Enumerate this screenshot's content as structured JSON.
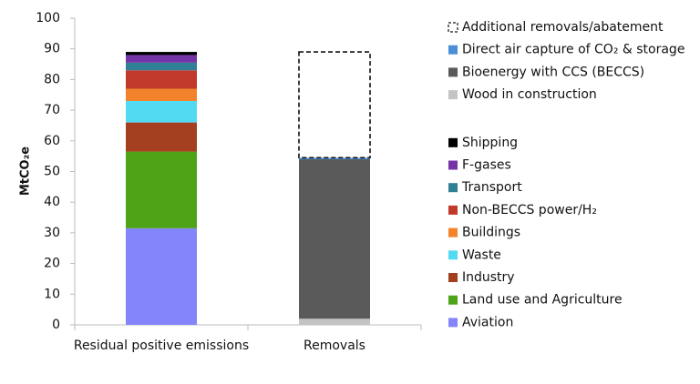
{
  "chart_data": {
    "type": "stacked-bar",
    "ylabel": "MtCO₂e",
    "categories": [
      "Residual positive emissions",
      "Removals"
    ],
    "ylim": [
      0,
      100
    ],
    "yticks": [
      0,
      10,
      20,
      30,
      40,
      50,
      60,
      70,
      80,
      90,
      100
    ],
    "series": [
      {
        "name": "Aviation",
        "color": "#8585fb",
        "values": [
          31.5,
          null
        ]
      },
      {
        "name": "Land use and Agriculture",
        "color": "#4ea416",
        "values": [
          25,
          null
        ]
      },
      {
        "name": "Industry",
        "color": "#a4401f",
        "values": [
          9.5,
          null
        ]
      },
      {
        "name": "Waste",
        "color": "#52daf2",
        "values": [
          7,
          null
        ]
      },
      {
        "name": "Buildings",
        "color": "#f3832b",
        "values": [
          4,
          null
        ]
      },
      {
        "name": "Non-BECCS power/H₂",
        "color": "#c0392b",
        "values": [
          6,
          null
        ]
      },
      {
        "name": "Transport",
        "color": "#2f7f95",
        "values": [
          2.5,
          null
        ]
      },
      {
        "name": "F-gases",
        "color": "#7434a6",
        "values": [
          2.5,
          null
        ]
      },
      {
        "name": "Shipping",
        "color": "#000000",
        "values": [
          1,
          null
        ]
      },
      {
        "name": "Wood in construction",
        "color": "#c4c4c4",
        "values": [
          null,
          2
        ]
      },
      {
        "name": "Bioenergy with CCS (BECCS)",
        "color": "#5a5a5a",
        "values": [
          null,
          52
        ]
      },
      {
        "name": "Direct air capture of CO₂ & storage",
        "color": "#4a8fd6",
        "values": [
          null,
          0.5
        ]
      },
      {
        "name": "Additional removals/abatement",
        "color": "#ffffff",
        "outline": "dashed",
        "values": [
          null,
          34.5
        ]
      }
    ]
  }
}
